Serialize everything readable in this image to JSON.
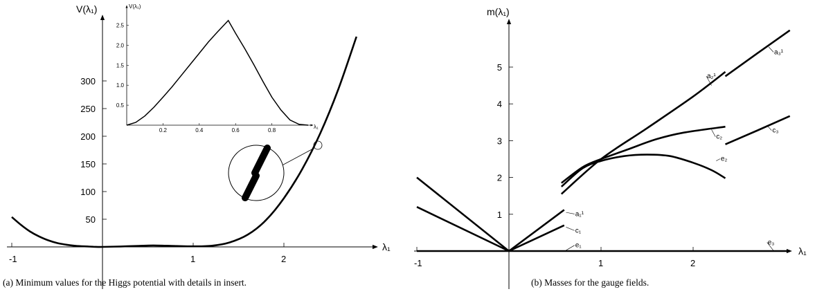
{
  "chart_data": [
    {
      "type": "line",
      "panel": "a",
      "caption": "(a) Minimum values for the Higgs potential with details in insert.",
      "ylabel": "V(λ₁)",
      "xlabel": "λ₁",
      "xlim": [
        -1.0,
        3.0
      ],
      "ylim": [
        0,
        380
      ],
      "xticks": [
        "-1",
        "1",
        "2"
      ],
      "yticks": [
        "50",
        "100",
        "150",
        "200",
        "250",
        "300"
      ],
      "series": [
        {
          "x": [
            -1.0,
            -0.9,
            -0.8,
            -0.7,
            -0.6,
            -0.5,
            -0.4,
            -0.3,
            -0.2,
            -0.1,
            0.0,
            0.2,
            0.4,
            0.56,
            0.8,
            1.0,
            1.2,
            1.4,
            1.6,
            1.8,
            2.0,
            2.2,
            2.4,
            2.6,
            2.8
          ],
          "y": [
            54,
            40,
            28,
            19,
            12,
            7,
            4,
            2,
            1,
            0.3,
            0,
            0.8,
            1.8,
            2.6,
            1.6,
            1,
            2,
            8,
            22,
            48,
            88,
            140,
            205,
            285,
            380
          ]
        }
      ],
      "inset": {
        "ylabel": "V(λ₁)",
        "xlabel": "λ₁",
        "xlim": [
          0.0,
          1.0
        ],
        "ylim": [
          0.0,
          2.7
        ],
        "xticks": [
          "0.2",
          "0.4",
          "0.6",
          "0.8"
        ],
        "yticks": [
          "0.5",
          "1.0",
          "1.5",
          "2.0",
          "2.5"
        ],
        "series": [
          {
            "x": [
              0.0,
              0.05,
              0.1,
              0.15,
              0.2,
              0.25,
              0.3,
              0.35,
              0.4,
              0.45,
              0.5,
              0.56,
              0.6,
              0.65,
              0.7,
              0.75,
              0.8,
              0.85,
              0.9,
              0.95,
              1.0
            ],
            "y": [
              0.0,
              0.07,
              0.23,
              0.45,
              0.7,
              0.96,
              1.24,
              1.52,
              1.8,
              2.08,
              2.33,
              2.62,
              2.3,
              1.92,
              1.52,
              1.1,
              0.7,
              0.38,
              0.13,
              0.02,
              0.0
            ]
          }
        ]
      }
    },
    {
      "type": "line",
      "panel": "b",
      "caption": "(b) Masses for the gauge fields.",
      "ylabel": "m(λ₁)",
      "xlabel": "λ₁",
      "xlim": [
        -1.0,
        3.0
      ],
      "ylim": [
        0,
        6.0
      ],
      "xticks": [
        "-1",
        "1",
        "2"
      ],
      "yticks": [
        "1",
        "2",
        "3",
        "4",
        "5"
      ],
      "series": [
        {
          "name": "a₁¹",
          "x": [
            -1.0,
            0.0,
            0.6
          ],
          "y": [
            2.0,
            0.0,
            1.12
          ]
        },
        {
          "name": "c₁",
          "x": [
            -1.0,
            0.0,
            0.6
          ],
          "y": [
            1.2,
            0.0,
            0.7
          ]
        },
        {
          "name": "e₁",
          "x": [
            -1.0,
            0.0,
            0.6,
            2.35
          ],
          "y": [
            0.0,
            0.0,
            0.0,
            0.0
          ]
        },
        {
          "name": "a₂¹",
          "x": [
            0.57,
            1.0,
            1.5,
            2.0,
            2.35
          ],
          "y": [
            1.55,
            2.5,
            3.34,
            4.2,
            4.87
          ]
        },
        {
          "name": "c₂",
          "x": [
            0.57,
            0.8,
            1.0,
            1.3,
            1.6,
            1.9,
            2.35
          ],
          "y": [
            1.85,
            2.28,
            2.5,
            2.77,
            3.04,
            3.22,
            3.38
          ]
        },
        {
          "name": "e₂",
          "x": [
            0.57,
            0.8,
            1.0,
            1.25,
            1.5,
            1.75,
            2.0,
            2.2,
            2.35
          ],
          "y": [
            1.75,
            2.25,
            2.45,
            2.58,
            2.62,
            2.58,
            2.4,
            2.2,
            1.98
          ]
        },
        {
          "name": "a₃¹",
          "x": [
            2.35,
            2.7,
            3.05
          ],
          "y": [
            4.75,
            5.38,
            6.0
          ]
        },
        {
          "name": "c₃",
          "x": [
            2.35,
            2.7,
            3.05
          ],
          "y": [
            2.9,
            3.28,
            3.67
          ]
        },
        {
          "name": "e₃",
          "x": [
            2.35,
            3.05
          ],
          "y": [
            0.0,
            0.0
          ]
        }
      ],
      "labels": [
        "a₁¹",
        "c₁",
        "e₁",
        "a₂¹",
        "c₂",
        "e₂",
        "a₃¹",
        "c₃",
        "e₃"
      ]
    }
  ]
}
